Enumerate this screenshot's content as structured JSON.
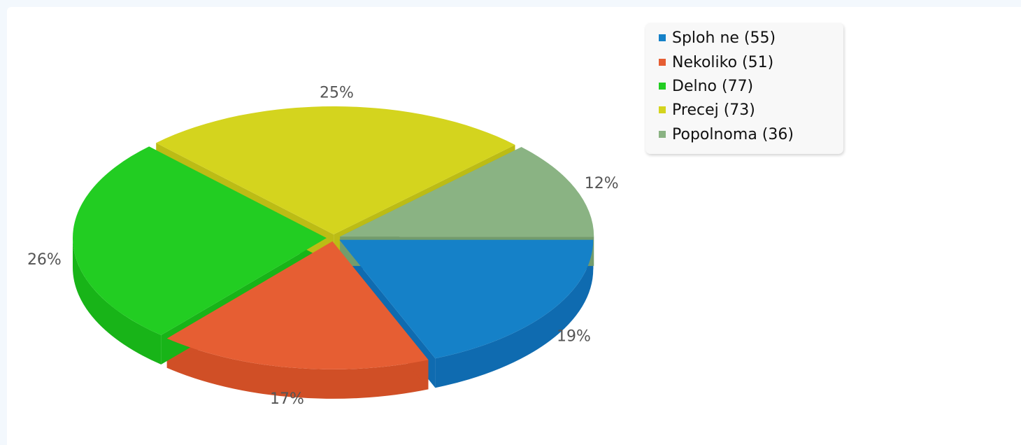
{
  "chart_data": {
    "type": "pie",
    "style": "3d-exploded",
    "slices": [
      {
        "name": "Sploh ne",
        "count": 55,
        "percent_label": "19%",
        "color": "#1581c8",
        "side_color": "#0f6bb0",
        "legend_label": "Sploh ne (55)"
      },
      {
        "name": "Nekoliko",
        "count": 51,
        "percent_label": "17%",
        "color": "#e65e33",
        "side_color": "#d04f26",
        "legend_label": "Nekoliko (51)"
      },
      {
        "name": "Delno",
        "count": 77,
        "percent_label": "26%",
        "color": "#22cd22",
        "side_color": "#18b418",
        "legend_label": "Delno (77)"
      },
      {
        "name": "Precej",
        "count": 73,
        "percent_label": "25%",
        "color": "#d4d41e",
        "side_color": "#bcbc15",
        "legend_label": "Precej (73)"
      },
      {
        "name": "Popolnoma",
        "count": 36,
        "percent_label": "12%",
        "color": "#8ab383",
        "side_color": "#739c6c",
        "legend_label": "Popolnoma (36)"
      }
    ],
    "legend_position": "top-right"
  }
}
